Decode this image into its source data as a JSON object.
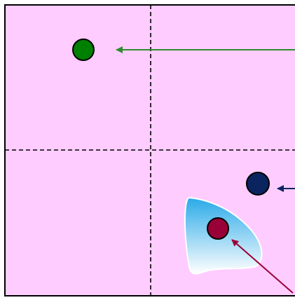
{
  "diagram": {
    "background_color": "#ffccff",
    "frame_color": "#000000",
    "divider_color": "#000000",
    "region": {
      "gradient_top_color": "#2aaae8",
      "gradient_bottom_color": "#ffffff",
      "outline_color": "#ffffff"
    },
    "points": [
      {
        "name": "green-point",
        "color": "#008000",
        "arrow_color": "#2e8b2e"
      },
      {
        "name": "navy-point",
        "color": "#0a2460",
        "arrow_color": "#0a2460"
      },
      {
        "name": "crimson-point",
        "color": "#9a0038",
        "arrow_color": "#9a0038"
      }
    ]
  }
}
